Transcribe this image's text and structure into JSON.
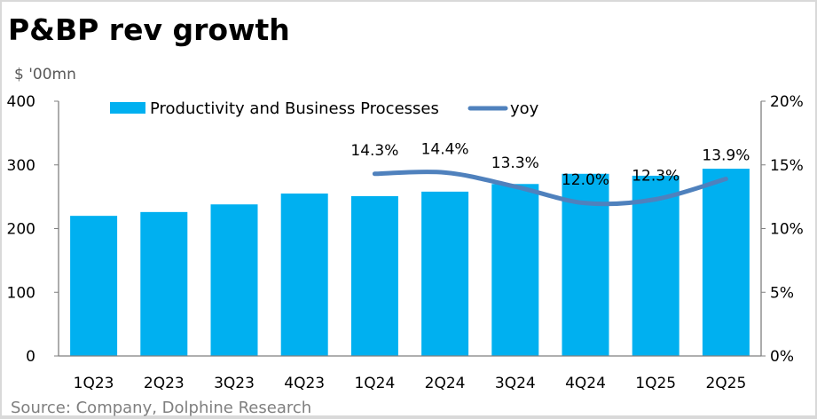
{
  "header": {
    "title": "P&BP rev growth",
    "unit": "$ '00mn"
  },
  "footer": {
    "source": "Source:  Company,  Dolphine Research"
  },
  "chart_data": {
    "type": "bar",
    "title": "P&BP rev growth",
    "ylabel": "$ '00mn",
    "categories": [
      "1Q23",
      "2Q23",
      "3Q23",
      "4Q23",
      "1Q24",
      "2Q24",
      "3Q24",
      "4Q24",
      "1Q25",
      "2Q25"
    ],
    "series": [
      {
        "name": "Productivity and Business Processes",
        "type": "bar",
        "axis": "left",
        "color": "#00b0f0",
        "values": [
          220,
          226,
          238,
          255,
          251,
          258,
          270,
          286,
          283,
          294
        ]
      },
      {
        "name": "yoy",
        "type": "line",
        "axis": "right",
        "color": "#4f81bd",
        "values": [
          null,
          null,
          null,
          null,
          14.3,
          14.4,
          13.3,
          12.0,
          12.3,
          13.9
        ],
        "labels": [
          null,
          null,
          null,
          null,
          "14.3%",
          "14.4%",
          "13.3%",
          "12.0%",
          "12.3%",
          "13.9%"
        ]
      }
    ],
    "ylim": [
      0,
      400
    ],
    "yticks": [
      "0",
      "100",
      "200",
      "300",
      "400"
    ],
    "y2lim": [
      0,
      20
    ],
    "y2ticks": [
      "0%",
      "5%",
      "10%",
      "15%",
      "20%"
    ],
    "legend": "top",
    "grid": false
  }
}
